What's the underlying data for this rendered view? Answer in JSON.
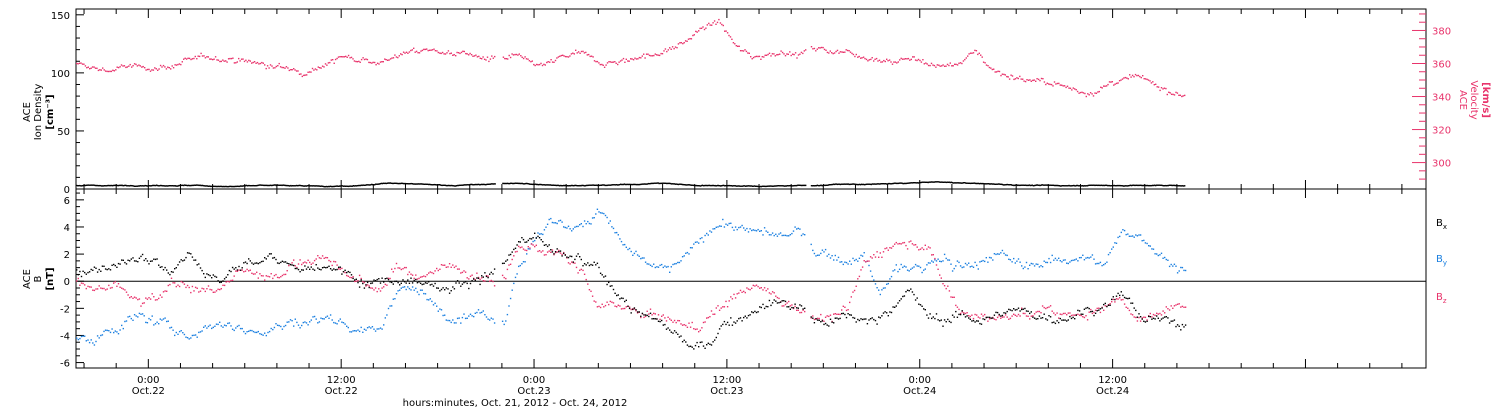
{
  "colors": {
    "axis": "#000000",
    "density": "#000000",
    "velocity": "#e8336b",
    "bx": "#000000",
    "by": "#1a7fe0",
    "bz": "#e8336b"
  },
  "xaxis": {
    "title": "hours:minutes, Oct. 21, 2012 - Oct. 24, 2012",
    "ticks": [
      {
        "hours": 24,
        "line1": "0:00",
        "line2": "Oct.22"
      },
      {
        "hours": 36,
        "line1": "12:00",
        "line2": "Oct.22"
      },
      {
        "hours": 48,
        "line1": "0:00",
        "line2": "Oct.23"
      },
      {
        "hours": 60,
        "line1": "12:00",
        "line2": "Oct.23"
      },
      {
        "hours": 72,
        "line1": "0:00",
        "line2": "Oct.24"
      },
      {
        "hours": 84,
        "line1": "12:00",
        "line2": "Oct.24"
      }
    ]
  },
  "top_panel": {
    "left_label": [
      "ACE",
      "Ion Density",
      "[cm⁻³]"
    ],
    "right_label": [
      "ACE",
      "Velocity",
      "[km/s]"
    ],
    "left_ticks": [
      "0",
      "50",
      "100",
      "150"
    ],
    "right_ticks": [
      "300",
      "320",
      "340",
      "360",
      "380"
    ]
  },
  "bottom_panel": {
    "left_label": [
      "ACE",
      "B",
      "[nT]"
    ],
    "left_ticks": [
      "-6",
      "-4",
      "-2",
      "0",
      "2",
      "4",
      "6"
    ],
    "legend": [
      {
        "text": "B",
        "sub": "x",
        "series": "bx"
      },
      {
        "text": "B",
        "sub": "y",
        "series": "by"
      },
      {
        "text": "B",
        "sub": "z",
        "series": "bz"
      }
    ]
  },
  "chart_data": [
    {
      "type": "scatter",
      "panel": "top",
      "x_units": "hours since Oct. 21, 2012 00:00",
      "x_range": [
        19.5,
        103.5
      ],
      "y_left_range": [
        0,
        155
      ],
      "y_right_range": [
        284,
        393
      ],
      "series": [
        {
          "name": "ACE Ion Density",
          "axis": "left",
          "gaps": [
            [
              45.6,
              46.0
            ],
            [
              64.9,
              65.2
            ]
          ],
          "x": [
            19.5,
            21,
            23,
            25,
            27,
            29,
            31,
            33,
            35,
            37,
            39,
            41,
            43,
            45,
            46.5,
            48,
            50,
            52,
            54,
            56,
            58,
            60,
            62,
            64,
            65.5,
            67,
            69,
            71,
            73,
            75,
            77,
            79,
            81,
            83,
            85,
            87,
            88.5
          ],
          "values": [
            3,
            3,
            3,
            3,
            3,
            2,
            3,
            3,
            2,
            3,
            5,
            4,
            3,
            4,
            5,
            4,
            3,
            3,
            4,
            5,
            3,
            3,
            2,
            3,
            3,
            4,
            4,
            5,
            6,
            5,
            4,
            3,
            3,
            3,
            3,
            3,
            3
          ]
        },
        {
          "name": "ACE Velocity",
          "axis": "right",
          "gaps": [
            [
              45.6,
              46.0
            ],
            [
              64.9,
              65.2
            ]
          ],
          "x": [
            19.5,
            20.5,
            21.5,
            22.5,
            23.5,
            24.5,
            25.5,
            26.5,
            27.5,
            28.5,
            29.5,
            30.5,
            31.5,
            32.5,
            33.5,
            34.5,
            35.5,
            36.5,
            37.5,
            38.5,
            39.5,
            40.5,
            41.5,
            42.5,
            43.5,
            44.5,
            45.5,
            46.2,
            47.0,
            47.5,
            48.5,
            49.5,
            50.5,
            51.5,
            52.5,
            53.5,
            54.5,
            55.5,
            56.5,
            57.5,
            58.5,
            59.5,
            60.5,
            61.5,
            62.5,
            63.5,
            64.5,
            65.5,
            66.5,
            67.5,
            68.5,
            69.5,
            70.5,
            71.5,
            72.5,
            73.5,
            74.5,
            75.5,
            76.5,
            77.5,
            78.5,
            79.5,
            80.5,
            81.5,
            82.5,
            83.5,
            84.5,
            85.5,
            86.5,
            87.5,
            88.5
          ],
          "values": [
            359,
            357,
            356,
            358,
            357,
            358,
            359,
            361,
            363,
            364,
            362,
            361,
            358,
            357,
            356,
            359,
            362,
            364,
            363,
            361,
            365,
            367,
            368,
            367,
            366,
            364,
            362,
            362,
            364,
            360,
            358,
            362,
            366,
            363,
            361,
            362,
            364,
            366,
            368,
            374,
            382,
            385,
            370,
            364,
            366,
            368,
            365,
            369,
            368,
            367,
            365,
            363,
            362,
            363,
            360,
            358,
            361,
            368,
            356,
            353,
            351,
            348,
            347,
            344,
            343,
            346,
            349,
            351,
            347,
            344,
            342
          ]
        }
      ]
    },
    {
      "type": "scatter",
      "panel": "bottom",
      "x_units": "hours since Oct. 21, 2012 00:00",
      "x_range": [
        19.5,
        103.5
      ],
      "y_range": [
        -6.4,
        6.8
      ],
      "reference_line": 0,
      "series": [
        {
          "name": "Bx",
          "gaps": [
            [
              45.6,
              46.0
            ],
            [
              64.9,
              65.2
            ]
          ],
          "x": [
            19.5,
            20.5,
            21.5,
            22.5,
            23.5,
            24.5,
            25.5,
            26.5,
            27.5,
            28.5,
            29.5,
            30.5,
            31.5,
            32.5,
            33.5,
            34.5,
            35.5,
            36.5,
            37.5,
            38.5,
            39.5,
            40.5,
            41.5,
            42.5,
            43.5,
            44.5,
            45.5,
            46.2,
            47.0,
            48.0,
            49.0,
            50.0,
            51.0,
            52.0,
            53.0,
            54.0,
            55.0,
            56.0,
            57.0,
            58.0,
            59.0,
            60.0,
            61.0,
            62.0,
            63.0,
            64.0,
            64.8,
            65.5,
            66.5,
            67.5,
            68.5,
            69.5,
            70.5,
            71.5,
            72.5,
            73.5,
            74.5,
            75.5,
            76.5,
            77.5,
            78.5,
            79.5,
            80.5,
            81.5,
            82.5,
            83.5,
            84.5,
            85.5,
            86.5,
            87.5,
            88.5
          ],
          "values": [
            1.0,
            1.2,
            1.0,
            1.6,
            1.8,
            1.5,
            1.2,
            2.2,
            0.8,
            0.0,
            1.0,
            1.4,
            1.7,
            1.2,
            1.0,
            0.8,
            0.6,
            0.8,
            0.2,
            0.0,
            0.2,
            0.4,
            -0.2,
            -0.4,
            0.0,
            0.3,
            0.5,
            1.2,
            2.8,
            3.0,
            2.3,
            1.8,
            1.2,
            0.8,
            -0.6,
            -1.8,
            -2.6,
            -3.0,
            -4.2,
            -5.2,
            -4.6,
            -3.0,
            -2.4,
            -1.8,
            -1.2,
            -1.8,
            -1.9,
            -2.8,
            -2.9,
            -2.4,
            -3.0,
            -2.8,
            -1.5,
            -0.8,
            -2.6,
            -2.8,
            -2.6,
            -2.8,
            -2.4,
            -2.2,
            -2.6,
            -2.5,
            -2.7,
            -2.4,
            -2.0,
            -1.6,
            -0.8,
            -2.4,
            -2.9,
            -3.0,
            -3.1
          ]
        },
        {
          "name": "By",
          "gaps": [
            [
              45.6,
              46.0
            ],
            [
              64.9,
              65.2
            ]
          ],
          "x": [
            19.5,
            20.5,
            21.5,
            22.5,
            23.5,
            24.5,
            25.5,
            26.5,
            27.5,
            28.5,
            29.5,
            30.5,
            31.5,
            32.5,
            33.5,
            34.5,
            35.5,
            36.5,
            37.5,
            38.5,
            39.5,
            40.5,
            41.5,
            42.5,
            43.5,
            44.5,
            45.5,
            46.2,
            47.0,
            48.0,
            49.0,
            50.0,
            51.0,
            52.0,
            53.0,
            54.0,
            55.0,
            56.0,
            57.0,
            58.0,
            59.0,
            60.0,
            61.0,
            62.0,
            63.0,
            64.0,
            64.8,
            65.5,
            66.5,
            67.5,
            68.5,
            69.5,
            70.5,
            71.5,
            72.5,
            73.5,
            74.5,
            75.5,
            76.5,
            77.5,
            78.5,
            79.5,
            80.5,
            81.5,
            82.5,
            83.5,
            84.5,
            85.5,
            86.5,
            87.5,
            88.5
          ],
          "values": [
            -4.3,
            -4.6,
            -3.8,
            -3.0,
            -2.6,
            -3.2,
            -3.6,
            -3.8,
            -3.4,
            -3.0,
            -3.4,
            -3.6,
            -3.6,
            -3.2,
            -3.0,
            -2.8,
            -2.7,
            -3.2,
            -3.5,
            -3.4,
            -0.4,
            -0.8,
            -1.5,
            -2.2,
            -2.3,
            -2.1,
            -2.6,
            -2.5,
            1.2,
            3.0,
            4.6,
            3.8,
            4.4,
            5.0,
            3.8,
            2.0,
            1.2,
            0.8,
            1.2,
            2.6,
            4.0,
            4.3,
            3.9,
            3.6,
            3.3,
            3.4,
            3.6,
            2.0,
            1.8,
            1.4,
            2.0,
            -1.2,
            1.0,
            0.8,
            1.2,
            1.6,
            1.0,
            1.2,
            2.0,
            1.6,
            1.0,
            1.4,
            1.6,
            2.0,
            1.8,
            1.2,
            3.2,
            3.4,
            2.6,
            1.6,
            0.6
          ]
        },
        {
          "name": "Bz",
          "gaps": [
            [
              45.6,
              46.0
            ],
            [
              64.9,
              65.2
            ]
          ],
          "x": [
            19.5,
            20.5,
            21.5,
            22.5,
            23.5,
            24.5,
            25.5,
            26.5,
            27.5,
            28.5,
            29.5,
            30.5,
            31.5,
            32.5,
            33.5,
            34.5,
            35.5,
            36.5,
            37.5,
            38.5,
            39.5,
            40.5,
            41.5,
            42.5,
            43.5,
            44.5,
            45.5,
            46.2,
            47.0,
            48.0,
            49.0,
            50.0,
            51.0,
            52.0,
            53.0,
            54.0,
            55.0,
            56.0,
            57.0,
            58.0,
            59.0,
            60.0,
            61.0,
            62.0,
            63.0,
            64.0,
            64.8,
            65.5,
            66.5,
            67.5,
            68.5,
            69.5,
            70.5,
            71.5,
            72.5,
            73.5,
            74.5,
            75.5,
            76.5,
            77.5,
            78.5,
            79.5,
            80.5,
            81.5,
            82.5,
            83.5,
            84.5,
            85.5,
            86.5,
            87.5,
            88.5
          ],
          "values": [
            0.2,
            -0.6,
            -0.4,
            -1.0,
            -1.8,
            -1.2,
            0.4,
            -0.2,
            -1.0,
            -0.6,
            0.8,
            0.6,
            0.6,
            0.9,
            1.4,
            1.8,
            1.2,
            0.4,
            -0.4,
            -0.6,
            1.2,
            0.2,
            0.8,
            1.0,
            1.1,
            0.4,
            0.0,
            0.8,
            2.6,
            2.6,
            2.0,
            1.4,
            0.6,
            -2.2,
            -1.8,
            -2.2,
            -2.6,
            -2.8,
            -3.0,
            -3.6,
            -2.4,
            -1.5,
            -0.6,
            -0.4,
            -1.0,
            -1.8,
            -2.2,
            -2.4,
            -2.6,
            -2.2,
            1.2,
            2.4,
            2.9,
            3.0,
            2.6,
            -0.2,
            -2.2,
            -2.4,
            -2.6,
            -2.8,
            -2.5,
            -2.2,
            -2.4,
            -2.6,
            -2.2,
            -1.8,
            -1.2,
            -2.4,
            -2.8,
            -2.2,
            -2.0
          ]
        }
      ]
    }
  ]
}
